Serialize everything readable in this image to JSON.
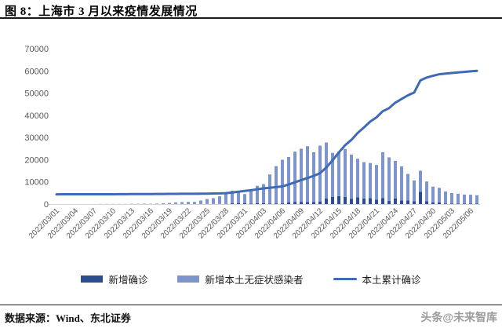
{
  "title": "图 8：上海市 3 月以来疫情发展情况",
  "footer": {
    "source": "数据来源：Wind、东北证券",
    "watermark": "头条@未来智库"
  },
  "legend": {
    "items": [
      {
        "label": "新增确诊"
      },
      {
        "label": "新增本土无症状感染者"
      },
      {
        "label": "本土累计确诊"
      }
    ]
  },
  "colors": {
    "confirmed_bar": "#2b4e8f",
    "asymptomatic_bar": "#7e95cc",
    "cumulative_line": "#3f6ab5",
    "axis_text": "#595959",
    "axis_line": "#d6d6d6"
  },
  "chart_data": {
    "type": "bar",
    "title": "上海市 3 月以来疫情发展情况",
    "xlabel": "",
    "ylabel": "",
    "ylim": [
      0,
      70000
    ],
    "y_ticks": [
      0,
      10000,
      20000,
      30000,
      40000,
      50000,
      60000,
      70000
    ],
    "x_tick_every": 3,
    "grid": false,
    "legend_position": "bottom",
    "dates": [
      "2022/03/01",
      "2022/03/02",
      "2022/03/03",
      "2022/03/04",
      "2022/03/05",
      "2022/03/06",
      "2022/03/07",
      "2022/03/08",
      "2022/03/09",
      "2022/03/10",
      "2022/03/11",
      "2022/03/12",
      "2022/03/13",
      "2022/03/14",
      "2022/03/15",
      "2022/03/16",
      "2022/03/17",
      "2022/03/18",
      "2022/03/19",
      "2022/03/20",
      "2022/03/21",
      "2022/03/22",
      "2022/03/23",
      "2022/03/24",
      "2022/03/25",
      "2022/03/26",
      "2022/03/27",
      "2022/03/28",
      "2022/03/29",
      "2022/03/30",
      "2022/03/31",
      "2022/04/01",
      "2022/04/02",
      "2022/04/03",
      "2022/04/04",
      "2022/04/05",
      "2022/04/06",
      "2022/04/07",
      "2022/04/08",
      "2022/04/09",
      "2022/04/10",
      "2022/04/11",
      "2022/04/12",
      "2022/04/13",
      "2022/04/14",
      "2022/04/15",
      "2022/04/16",
      "2022/04/17",
      "2022/04/18",
      "2022/04/19",
      "2022/04/20",
      "2022/04/21",
      "2022/04/22",
      "2022/04/23",
      "2022/04/24",
      "2022/04/25",
      "2022/04/26",
      "2022/04/27",
      "2022/04/28",
      "2022/04/29",
      "2022/04/30",
      "2022/05/01",
      "2022/05/02",
      "2022/05/03",
      "2022/05/04",
      "2022/05/05",
      "2022/05/06",
      "2022/05/07"
    ],
    "series": [
      {
        "name": "新增确诊",
        "type": "bar",
        "stack": "daily",
        "color": "#2b4e8f",
        "values": [
          1,
          3,
          2,
          3,
          0,
          3,
          4,
          3,
          4,
          11,
          5,
          1,
          41,
          9,
          5,
          8,
          57,
          8,
          17,
          24,
          31,
          4,
          4,
          29,
          38,
          45,
          50,
          96,
          326,
          355,
          358,
          260,
          438,
          425,
          268,
          311,
          322,
          824,
          1015,
          1006,
          914,
          994,
          1189,
          2573,
          3200,
          3590,
          3238,
          2417,
          3084,
          2494,
          2634,
          1931,
          2736,
          1401,
          2472,
          1661,
          1606,
          1292,
          5487,
          1249,
          788,
          727,
          274,
          260,
          261,
          245,
          253,
          215
        ]
      },
      {
        "name": "新增本土无症状感染者",
        "type": "bar",
        "stack": "daily",
        "color": "#7e95cc",
        "values": [
          1,
          5,
          14,
          16,
          28,
          45,
          51,
          62,
          76,
          64,
          78,
          64,
          128,
          130,
          197,
          150,
          203,
          366,
          492,
          734,
          865,
          977,
          979,
          1580,
          2231,
          2631,
          3450,
          4381,
          5656,
          5298,
          4144,
          6051,
          7788,
          8581,
          13086,
          16766,
          19660,
          20398,
          22609,
          23937,
          25173,
          22348,
          25141,
          25146,
          19872,
          19923,
          21582,
          19831,
          17332,
          16407,
          15861,
          15698,
          20634,
          19657,
          16983,
          15319,
          11956,
          9330,
          9545,
          8932,
          7084,
          6606,
          5395,
          4722,
          4390,
          4024,
          3961,
          3760
        ]
      },
      {
        "name": "本土累计确诊",
        "type": "line",
        "color": "#3f6ab5",
        "values": [
          4401,
          4404,
          4406,
          4409,
          4409,
          4412,
          4416,
          4419,
          4423,
          4434,
          4439,
          4440,
          4481,
          4490,
          4495,
          4503,
          4560,
          4568,
          4585,
          4609,
          4640,
          4644,
          4648,
          4677,
          4715,
          4760,
          4810,
          4906,
          5232,
          5587,
          5945,
          6205,
          6643,
          7068,
          7336,
          7647,
          7969,
          8793,
          9808,
          10814,
          11728,
          12722,
          13911,
          16484,
          19684,
          23274,
          26512,
          28929,
          32013,
          34507,
          37141,
          39072,
          41808,
          43209,
          45681,
          47342,
          48948,
          50240,
          55727,
          56976,
          57764,
          58491,
          58765,
          59025,
          59286,
          59531,
          59784,
          59999
        ]
      }
    ]
  }
}
